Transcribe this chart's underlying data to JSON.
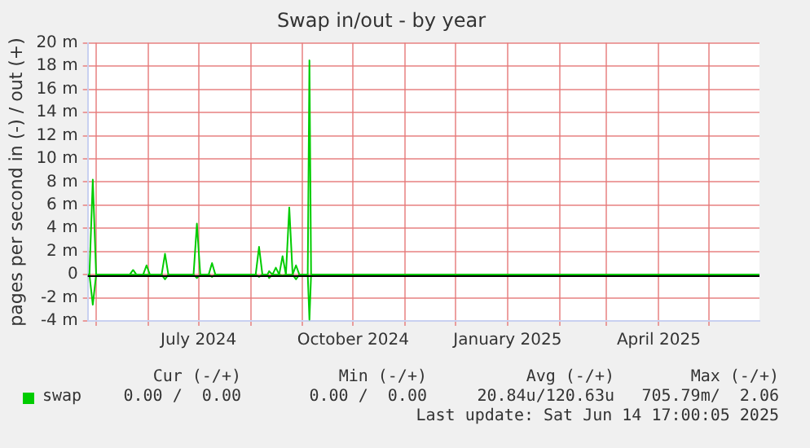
{
  "chart_data": {
    "type": "line",
    "title": "Swap in/out - by year",
    "ylabel": "pages per second in (-) / out (+)",
    "x": [
      "2024-04-26",
      "2024-04-27",
      "2024-04-29",
      "2024-05-01",
      "2024-05-21",
      "2024-05-23",
      "2024-05-25",
      "2024-05-29",
      "2024-05-31",
      "2024-06-02",
      "2024-06-09",
      "2024-06-11",
      "2024-06-13",
      "2024-06-28",
      "2024-06-30",
      "2024-07-02",
      "2024-07-07",
      "2024-07-09",
      "2024-07-11",
      "2024-08-04",
      "2024-08-06",
      "2024-08-08",
      "2024-08-11",
      "2024-08-12",
      "2024-08-14",
      "2024-08-16",
      "2024-08-18",
      "2024-08-20",
      "2024-08-22",
      "2024-08-24",
      "2024-08-26",
      "2024-08-28",
      "2024-08-30",
      "2024-09-04",
      "2024-09-05",
      "2024-09-06",
      "2025-05-31"
    ],
    "series": [
      {
        "name": "swap",
        "color": "#00cc00",
        "values": [
          0,
          0,
          8.2,
          0,
          0,
          0.4,
          0,
          0,
          0.8,
          0,
          0,
          1.8,
          0,
          0,
          4.4,
          0,
          0,
          1,
          0,
          0,
          2.4,
          0,
          0,
          0.3,
          0,
          0.6,
          0,
          1.6,
          0,
          5.8,
          0,
          0.8,
          0,
          0,
          18.5,
          0,
          0
        ]
      },
      {
        "color": "#00cc00",
        "values": [
          0,
          0,
          -2.6,
          0,
          0,
          0,
          0,
          0,
          0,
          0,
          0,
          -0.4,
          0,
          0,
          -0.3,
          0,
          0,
          -0.2,
          0,
          0,
          -0.2,
          0,
          0,
          -0.3,
          0,
          0,
          0,
          -0.1,
          0,
          0,
          0,
          -0.4,
          0,
          0,
          -3.9,
          0,
          0
        ]
      }
    ],
    "xlim": [
      "2024-04-26",
      "2025-05-31"
    ],
    "xticks": [
      {
        "value": "2024-05-01",
        "label": null
      },
      {
        "value": "2024-06-01",
        "label": null
      },
      {
        "value": "2024-07-01",
        "label": "July 2024"
      },
      {
        "value": "2024-08-01",
        "label": null
      },
      {
        "value": "2024-09-01",
        "label": null
      },
      {
        "value": "2024-10-01",
        "label": "October 2024"
      },
      {
        "value": "2024-11-01",
        "label": null
      },
      {
        "value": "2024-12-01",
        "label": null
      },
      {
        "value": "2025-01-01",
        "label": "January 2025"
      },
      {
        "value": "2025-02-01",
        "label": null
      },
      {
        "value": "2025-03-01",
        "label": null
      },
      {
        "value": "2025-04-01",
        "label": "April 2025"
      },
      {
        "value": "2025-05-01",
        "label": null
      }
    ],
    "ylim": [
      -4,
      20
    ],
    "yticks": [
      {
        "value": -4,
        "label": "-4 m"
      },
      {
        "value": -2,
        "label": "-2 m"
      },
      {
        "value": 0,
        "label": "0"
      },
      {
        "value": 2,
        "label": "2 m"
      },
      {
        "value": 4,
        "label": "4 m"
      },
      {
        "value": 6,
        "label": "6 m"
      },
      {
        "value": 8,
        "label": "8 m"
      },
      {
        "value": 10,
        "label": "10 m"
      },
      {
        "value": 12,
        "label": "12 m"
      },
      {
        "value": 14,
        "label": "14 m"
      },
      {
        "value": 16,
        "label": "16 m"
      },
      {
        "value": 18,
        "label": "18 m"
      },
      {
        "value": 20,
        "label": "20 m"
      }
    ],
    "ref_lines": [
      {
        "axis": "y",
        "value": 0,
        "color": "#000000"
      }
    ],
    "grid": true,
    "legend": "bottom left",
    "marker": "none",
    "line_style": "solid",
    "annotations": [
      "Cur (-/+)",
      "Min (-/+)",
      "Avg (-/+)",
      "Max (-/+)",
      "0.00 /  0.00",
      "0.00 /  0.00",
      "20.84u/120.63u",
      "705.79m/  2.06",
      "Last update: Sat Jun 14 17:00:05 2025"
    ]
  }
}
